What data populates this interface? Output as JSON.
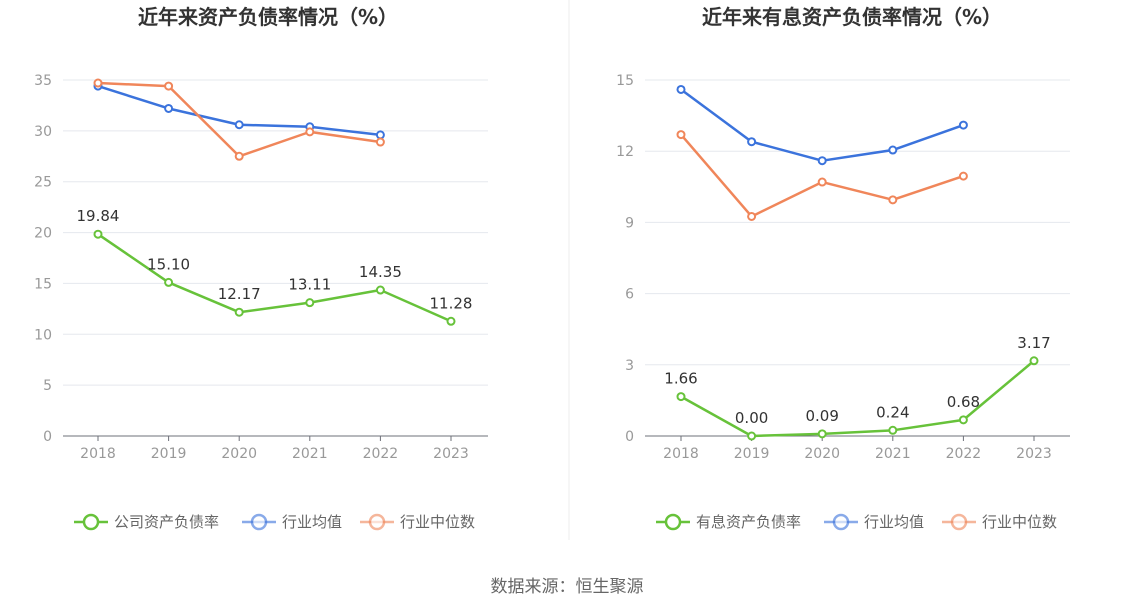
{
  "source_text": "数据来源：恒生聚源",
  "colors": {
    "company": "#67c23a",
    "industry_avg": "#3b73dc",
    "industry_median": "#f0865a"
  },
  "chart_data": [
    {
      "type": "line",
      "title": "近年来资产负债率情况（%）",
      "x": [
        "2018",
        "2019",
        "2020",
        "2021",
        "2022",
        "2023"
      ],
      "ylim": [
        0,
        35
      ],
      "yticks": [
        0,
        5,
        10,
        15,
        20,
        25,
        30,
        35
      ],
      "grid": true,
      "legend_position": "bottom",
      "series": [
        {
          "name": "公司资产负债率",
          "color": "#67c23a",
          "show_labels": true,
          "values": [
            19.84,
            15.1,
            12.17,
            13.11,
            14.35,
            11.28
          ],
          "labels": [
            "19.84",
            "15.10",
            "12.17",
            "13.11",
            "14.35",
            "11.28"
          ]
        },
        {
          "name": "行业均值",
          "color": "#3b73dc",
          "show_labels": false,
          "values": [
            34.4,
            32.2,
            30.6,
            30.4,
            29.6,
            null
          ]
        },
        {
          "name": "行业中位数",
          "color": "#f0865a",
          "show_labels": false,
          "values": [
            34.7,
            34.4,
            27.5,
            29.9,
            28.9,
            null
          ]
        }
      ]
    },
    {
      "type": "line",
      "title": "近年来有息资产负债率情况（%）",
      "x": [
        "2018",
        "2019",
        "2020",
        "2021",
        "2022",
        "2023"
      ],
      "ylim": [
        0,
        15
      ],
      "yticks": [
        0,
        3,
        6,
        9,
        12,
        15
      ],
      "grid": true,
      "legend_position": "bottom",
      "series": [
        {
          "name": "有息资产负债率",
          "color": "#67c23a",
          "show_labels": true,
          "values": [
            1.66,
            0.0,
            0.09,
            0.24,
            0.68,
            3.17
          ],
          "labels": [
            "1.66",
            "0.00",
            "0.09",
            "0.24",
            "0.68",
            "3.17"
          ]
        },
        {
          "name": "行业均值",
          "color": "#3b73dc",
          "show_labels": false,
          "values": [
            14.6,
            12.4,
            11.6,
            12.05,
            13.1,
            null
          ]
        },
        {
          "name": "行业中位数",
          "color": "#f0865a",
          "show_labels": false,
          "values": [
            12.7,
            9.25,
            10.7,
            9.95,
            10.95,
            null
          ]
        }
      ]
    }
  ]
}
